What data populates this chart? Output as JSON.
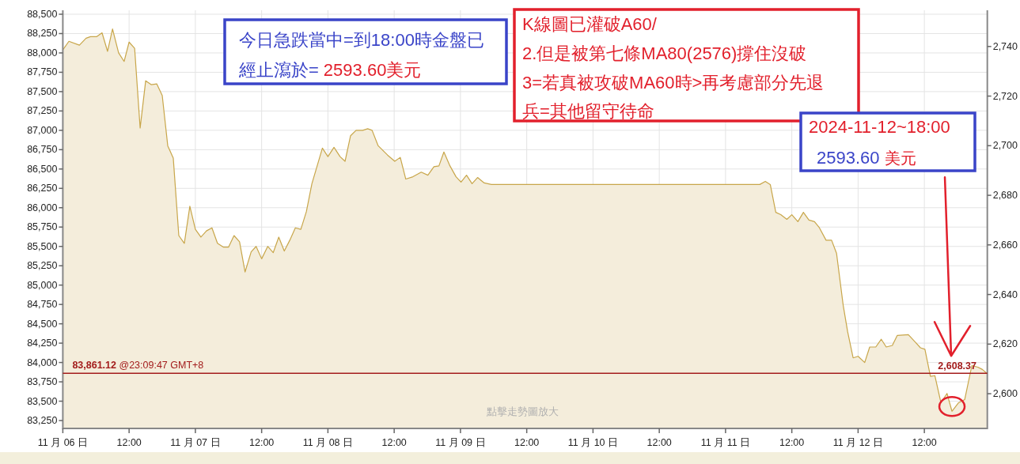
{
  "chart_data": {
    "type": "area",
    "x": [
      "2024-11-06T00:00",
      "2024-11-06T01:06",
      "2024-11-06T03:00",
      "2024-11-06T04:12",
      "2024-11-06T05:00",
      "2024-11-06T06:06",
      "2024-11-06T07:06",
      "2024-11-06T08:06",
      "2024-11-06T09:00",
      "2024-11-06T10:06",
      "2024-11-06T11:06",
      "2024-11-06T12:00",
      "2024-11-06T13:00",
      "2024-11-06T14:00",
      "2024-11-06T15:00",
      "2024-11-06T16:00",
      "2024-11-06T17:00",
      "2024-11-06T18:00",
      "2024-11-06T19:00",
      "2024-11-06T20:00",
      "2024-11-06T21:00",
      "2024-11-06T22:00",
      "2024-11-06T23:00",
      "2024-11-07T00:00",
      "2024-11-07T01:00",
      "2024-11-07T02:00",
      "2024-11-07T03:00",
      "2024-11-07T04:00",
      "2024-11-07T05:06",
      "2024-11-07T06:00",
      "2024-11-07T07:00",
      "2024-11-07T08:00",
      "2024-11-07T09:00",
      "2024-11-07T10:06",
      "2024-11-07T11:00",
      "2024-11-07T12:00",
      "2024-11-07T13:06",
      "2024-11-07T14:06",
      "2024-11-07T15:06",
      "2024-11-07T16:06",
      "2024-11-07T17:06",
      "2024-11-07T18:06",
      "2024-11-07T19:06",
      "2024-11-07T20:06",
      "2024-11-07T21:06",
      "2024-11-07T23:00",
      "2024-11-08T00:00",
      "2024-11-08T01:06",
      "2024-11-08T02:12",
      "2024-11-08T03:06",
      "2024-11-08T04:06",
      "2024-11-08T05:06",
      "2024-11-08T06:18",
      "2024-11-08T07:12",
      "2024-11-08T08:00",
      "2024-11-08T09:06",
      "2024-11-08T10:48",
      "2024-11-08T12:06",
      "2024-11-08T13:06",
      "2024-11-08T14:06",
      "2024-11-08T15:24",
      "2024-11-08T16:54",
      "2024-11-08T18:06",
      "2024-11-08T19:12",
      "2024-11-08T20:06",
      "2024-11-08T21:00",
      "2024-11-08T22:06",
      "2024-11-08T23:12",
      "2024-11-09T00:06",
      "2024-11-09T01:06",
      "2024-11-09T02:06",
      "2024-11-09T03:06",
      "2024-11-09T04:18",
      "2024-11-09T05:36",
      "2024-11-11T06:12",
      "2024-11-11T07:12",
      "2024-11-11T08:06",
      "2024-11-11T09:06",
      "2024-11-11T10:00",
      "2024-11-11T11:06",
      "2024-11-11T12:00",
      "2024-11-11T13:06",
      "2024-11-11T14:06",
      "2024-11-11T15:06",
      "2024-11-11T16:06",
      "2024-11-11T17:00",
      "2024-11-11T18:12",
      "2024-11-11T19:12",
      "2024-11-11T20:06",
      "2024-11-11T21:18",
      "2024-11-11T22:06",
      "2024-11-11T23:06",
      "2024-11-12T00:00",
      "2024-11-12T01:12",
      "2024-11-12T02:06",
      "2024-11-12T03:12",
      "2024-11-12T04:12",
      "2024-11-12T05:06",
      "2024-11-12T06:12",
      "2024-11-12T07:06",
      "2024-11-12T09:06",
      "2024-11-12T10:24",
      "2024-11-12T11:18",
      "2024-11-12T12:06",
      "2024-11-12T13:06",
      "2024-11-12T13:54",
      "2024-11-12T15:00",
      "2024-11-12T16:06",
      "2024-11-12T17:00",
      "2024-11-12T18:12",
      "2024-11-12T19:18",
      "2024-11-12T20:36",
      "2024-11-12T21:42",
      "2024-11-12T22:30",
      "2024-11-12T23:18"
    ],
    "series": [
      {
        "color": "#c8a64a",
        "values": [
          88040,
          88150,
          88100,
          88190,
          88210,
          88210,
          88260,
          88020,
          88310,
          88000,
          87890,
          88140,
          88060,
          87030,
          87640,
          87590,
          87600,
          87450,
          86800,
          86640,
          85640,
          85540,
          86020,
          85720,
          85620,
          85700,
          85740,
          85540,
          85490,
          85490,
          85640,
          85560,
          85170,
          85430,
          85500,
          85340,
          85500,
          85420,
          85620,
          85440,
          85580,
          85740,
          85720,
          85950,
          86310,
          86770,
          86660,
          86780,
          86660,
          86600,
          86930,
          87000,
          87000,
          87020,
          87000,
          86800,
          86680,
          86600,
          86650,
          86370,
          86400,
          86460,
          86420,
          86530,
          86540,
          86720,
          86540,
          86400,
          86330,
          86420,
          86310,
          86390,
          86320,
          86300,
          86300,
          86340,
          86300,
          85940,
          85910,
          85850,
          85910,
          85820,
          85940,
          85840,
          85820,
          85740,
          85580,
          85580,
          85410,
          84740,
          84400,
          84060,
          84080,
          84000,
          84200,
          84200,
          84300,
          84200,
          84220,
          84350,
          84360,
          84260,
          84190,
          84170,
          83820,
          83830,
          83480,
          83600,
          83370,
          83480,
          83520,
          83960,
          83940,
          83910,
          83860
        ]
      }
    ],
    "xlim": [
      "2024-11-06T00:00",
      "2024-11-12T23:24"
    ],
    "xticks": [
      {
        "value": "2024-11-06T00:00",
        "label": "11 月 06 日"
      },
      {
        "value": "2024-11-06T12:00",
        "label": "12:00"
      },
      {
        "value": "2024-11-07T00:00",
        "label": "11 月 07 日"
      },
      {
        "value": "2024-11-07T12:00",
        "label": "12:00"
      },
      {
        "value": "2024-11-08T00:00",
        "label": "11 月 08 日"
      },
      {
        "value": "2024-11-08T12:00",
        "label": "12:00"
      },
      {
        "value": "2024-11-09T00:00",
        "label": "11 月 09 日"
      },
      {
        "value": "2024-11-09T12:00",
        "label": "12:00"
      },
      {
        "value": "2024-11-10T00:00",
        "label": "11 月 10 日"
      },
      {
        "value": "2024-11-10T12:00",
        "label": "12:00"
      },
      {
        "value": "2024-11-11T00:00",
        "label": "11 月 11 日"
      },
      {
        "value": "2024-11-11T12:00",
        "label": "12:00"
      },
      {
        "value": "2024-11-12T00:00",
        "label": "11 月 12 日"
      },
      {
        "value": "2024-11-12T12:00",
        "label": "12:00"
      }
    ],
    "ylim": [
      83148,
      88551
    ],
    "yticks": [
      {
        "value": 83250,
        "label": "83,250"
      },
      {
        "value": 83500,
        "label": "83,500"
      },
      {
        "value": 83750,
        "label": "83,750"
      },
      {
        "value": 84000,
        "label": "84,000"
      },
      {
        "value": 84250,
        "label": "84,250"
      },
      {
        "value": 84500,
        "label": "84,500"
      },
      {
        "value": 84750,
        "label": "84,750"
      },
      {
        "value": 85000,
        "label": "85,000"
      },
      {
        "value": 85250,
        "label": "85,250"
      },
      {
        "value": 85500,
        "label": "85,500"
      },
      {
        "value": 85750,
        "label": "85,750"
      },
      {
        "value": 86000,
        "label": "86,000"
      },
      {
        "value": 86250,
        "label": "86,250"
      },
      {
        "value": 86500,
        "label": "86,500"
      },
      {
        "value": 86750,
        "label": "86,750"
      },
      {
        "value": 87000,
        "label": "87,000"
      },
      {
        "value": 87250,
        "label": "87,250"
      },
      {
        "value": 87500,
        "label": "87,500"
      },
      {
        "value": 87750,
        "label": "87,750"
      },
      {
        "value": 88000,
        "label": "88,000"
      },
      {
        "value": 88250,
        "label": "88,250"
      },
      {
        "value": 88500,
        "label": "88,500"
      }
    ],
    "y2lim": [
      2586,
      2754.6
    ],
    "y2ticks": [
      {
        "value": 2600,
        "label": "2,600"
      },
      {
        "value": 2620,
        "label": "2,620"
      },
      {
        "value": 2640,
        "label": "2,640"
      },
      {
        "value": 2660,
        "label": "2,660"
      },
      {
        "value": 2680,
        "label": "2,680"
      },
      {
        "value": 2700,
        "label": "2,700"
      },
      {
        "value": 2720,
        "label": "2,720"
      },
      {
        "value": 2740,
        "label": "2,740"
      }
    ],
    "grid": true,
    "ref_lines": [
      {
        "axis": "y",
        "value": 83861.12,
        "label": "**83,861.12** @23:09:47 GMT+8",
        "color": "#a31c1c"
      }
    ],
    "annotations": [
      "今日急跌當中=到18:00時金盤已",
      "經止瀉於=",
      "2593.60美元",
      "K線圖已灌破A60/",
      "2.但是被第七條MA80(2576)撐住沒破",
      "3=若真被攻破MA60時>再考慮部分先退",
      "兵=其他留守待命",
      "2024-11-12~18:00",
      "2593.60",
      "美元",
      "點擊走勢圖放大",
      "2,608.37"
    ]
  }
}
